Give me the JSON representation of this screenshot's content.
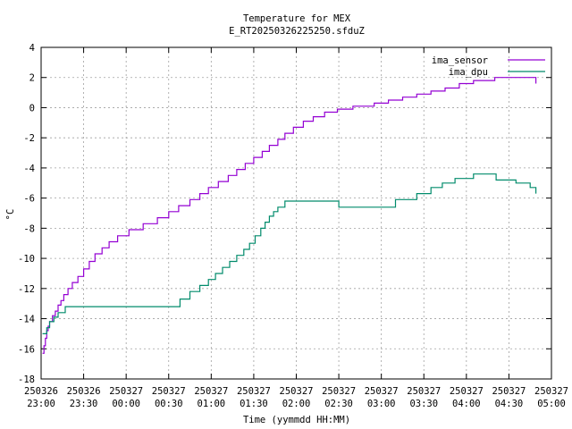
{
  "chart_data": {
    "type": "line",
    "title": "Temperature for MEX",
    "subtitle": "E_RT20250326225250.sfduZ",
    "xlabel": "Time (yymmdd HH:MM)",
    "ylabel": "°C",
    "xlim": [
      "2025-03-26 23:00",
      "2025-03-27 05:00"
    ],
    "ylim": [
      -18,
      4
    ],
    "grid": true,
    "legend_position": "top-right",
    "x_tick_labels": [
      [
        "250326",
        "23:00"
      ],
      [
        "250326",
        "23:30"
      ],
      [
        "250327",
        "00:00"
      ],
      [
        "250327",
        "00:30"
      ],
      [
        "250327",
        "01:00"
      ],
      [
        "250327",
        "01:30"
      ],
      [
        "250327",
        "02:00"
      ],
      [
        "250327",
        "02:30"
      ],
      [
        "250327",
        "03:00"
      ],
      [
        "250327",
        "03:30"
      ],
      [
        "250327",
        "04:00"
      ],
      [
        "250327",
        "04:30"
      ],
      [
        "250327",
        "05:00"
      ]
    ],
    "y_tick_labels": [
      "4",
      "2",
      "0",
      "-2",
      "-4",
      "-6",
      "-8",
      "-10",
      "-12",
      "-14",
      "-16",
      "-18"
    ],
    "series": [
      {
        "name": "ima_sensor",
        "color": "#9400d3",
        "x": [
          "2025-03-26 23:01",
          "2025-03-26 23:02",
          "2025-03-26 23:03",
          "2025-03-26 23:04",
          "2025-03-26 23:05",
          "2025-03-26 23:06",
          "2025-03-26 23:08",
          "2025-03-26 23:10",
          "2025-03-26 23:12",
          "2025-03-26 23:14",
          "2025-03-26 23:16",
          "2025-03-26 23:19",
          "2025-03-26 23:22",
          "2025-03-26 23:26",
          "2025-03-26 23:30",
          "2025-03-26 23:34",
          "2025-03-26 23:38",
          "2025-03-26 23:43",
          "2025-03-26 23:48",
          "2025-03-26 23:54",
          "2025-03-27 00:02",
          "2025-03-27 00:12",
          "2025-03-27 00:22",
          "2025-03-27 00:30",
          "2025-03-27 00:37",
          "2025-03-27 00:45",
          "2025-03-27 00:52",
          "2025-03-27 00:58",
          "2025-03-27 01:05",
          "2025-03-27 01:12",
          "2025-03-27 01:18",
          "2025-03-27 01:24",
          "2025-03-27 01:30",
          "2025-03-27 01:36",
          "2025-03-27 01:41",
          "2025-03-27 01:47",
          "2025-03-27 01:52",
          "2025-03-27 01:58",
          "2025-03-27 02:05",
          "2025-03-27 02:12",
          "2025-03-27 02:20",
          "2025-03-27 02:29",
          "2025-03-27 02:40",
          "2025-03-27 02:55",
          "2025-03-27 03:05",
          "2025-03-27 03:15",
          "2025-03-27 03:25",
          "2025-03-27 03:35",
          "2025-03-27 03:45",
          "2025-03-27 03:55",
          "2025-03-27 04:05",
          "2025-03-27 04:20",
          "2025-03-27 04:40",
          "2025-03-27 04:49"
        ],
        "y": [
          -16.3,
          -15.8,
          -15.3,
          -14.8,
          -14.5,
          -14.2,
          -13.8,
          -13.5,
          -13.1,
          -12.8,
          -12.4,
          -12.0,
          -11.6,
          -11.2,
          -10.7,
          -10.2,
          -9.7,
          -9.3,
          -8.9,
          -8.5,
          -8.1,
          -7.7,
          -7.3,
          -6.9,
          -6.5,
          -6.1,
          -5.7,
          -5.3,
          -4.9,
          -4.5,
          -4.1,
          -3.7,
          -3.3,
          -2.9,
          -2.5,
          -2.1,
          -1.7,
          -1.3,
          -0.9,
          -0.6,
          -0.3,
          -0.1,
          0.1,
          0.3,
          0.5,
          0.7,
          0.9,
          1.1,
          1.3,
          1.6,
          1.8,
          2.0,
          2.0,
          1.6
        ]
      },
      {
        "name": "ima_dpu",
        "color": "#008b6b",
        "x": [
          "2025-03-26 23:01",
          "2025-03-26 23:04",
          "2025-03-26 23:06",
          "2025-03-26 23:09",
          "2025-03-26 23:12",
          "2025-03-26 23:17",
          "2025-03-27 00:30",
          "2025-03-27 00:38",
          "2025-03-27 00:45",
          "2025-03-27 00:52",
          "2025-03-27 00:58",
          "2025-03-27 01:03",
          "2025-03-27 01:08",
          "2025-03-27 01:13",
          "2025-03-27 01:18",
          "2025-03-27 01:23",
          "2025-03-27 01:27",
          "2025-03-27 01:31",
          "2025-03-27 01:35",
          "2025-03-27 01:38",
          "2025-03-27 01:41",
          "2025-03-27 01:44",
          "2025-03-27 01:47",
          "2025-03-27 01:52",
          "2025-03-27 02:02",
          "2025-03-27 02:30",
          "2025-03-27 02:50",
          "2025-03-27 03:10",
          "2025-03-27 03:25",
          "2025-03-27 03:35",
          "2025-03-27 03:43",
          "2025-03-27 03:52",
          "2025-03-27 04:05",
          "2025-03-27 04:10",
          "2025-03-27 04:21",
          "2025-03-27 04:35",
          "2025-03-27 04:45",
          "2025-03-27 04:49"
        ],
        "y": [
          -15.0,
          -14.6,
          -14.2,
          -13.9,
          -13.6,
          -13.2,
          -13.2,
          -12.7,
          -12.2,
          -11.8,
          -11.4,
          -11.0,
          -10.6,
          -10.2,
          -9.8,
          -9.4,
          -9.0,
          -8.5,
          -8.0,
          -7.6,
          -7.2,
          -6.9,
          -6.6,
          -6.2,
          -6.2,
          -6.6,
          -6.6,
          -6.1,
          -5.7,
          -5.3,
          -5.0,
          -4.7,
          -4.4,
          -4.4,
          -4.8,
          -5.0,
          -5.3,
          -5.7
        ]
      }
    ]
  }
}
